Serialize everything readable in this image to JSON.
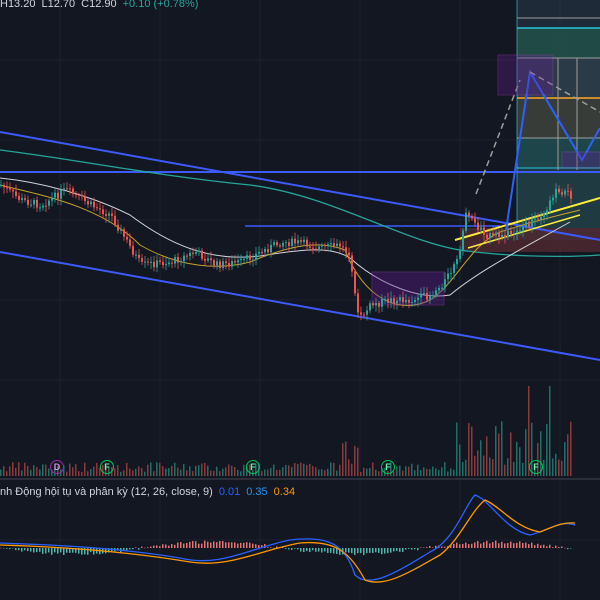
{
  "header": {
    "high": "H13.20",
    "low": "L12.70",
    "close": "C12.90",
    "change": "+0.10 (+0.78%)"
  },
  "macd": {
    "title": "nh Động hội tụ và phân kỳ (12, 26, close, 9)",
    "val1": "0.01",
    "val2": "0.35",
    "val3": "0.34"
  },
  "events": [
    "D",
    "F",
    "F",
    "F",
    "F"
  ],
  "colors": {
    "background": "#131722",
    "up": "#26a69a",
    "down": "#ef5350",
    "trend": "#2962ff",
    "channel": "#3d5afe",
    "fib_band": "#5d7ca8"
  }
}
